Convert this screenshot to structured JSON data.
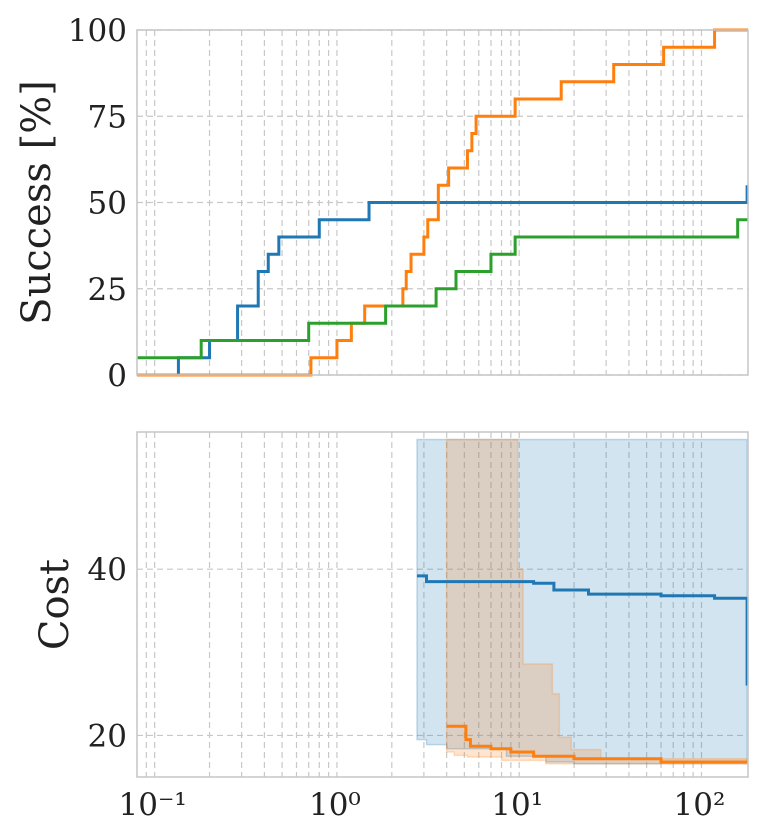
{
  "chart_data": [
    {
      "type": "line",
      "ylabel": "Success [%]",
      "xscale": "log",
      "xlim": [
        0.08,
        180
      ],
      "ylim": [
        0,
        100
      ],
      "yticks": [
        "0",
        "25",
        "50",
        "75",
        "100"
      ],
      "grid": true,
      "series": [
        {
          "color": "#1f77b4",
          "x": [
            0.08,
            0.135,
            0.135,
            0.2,
            0.2,
            0.285,
            0.285,
            0.37,
            0.37,
            0.42,
            0.42,
            0.48,
            0.48,
            0.8,
            0.8,
            1.5,
            1.5,
            2.75,
            2.75,
            178,
            178
          ],
          "y": [
            0,
            0,
            5,
            5,
            10,
            10,
            20,
            20,
            30,
            30,
            35,
            35,
            40,
            40,
            45,
            45,
            50,
            50,
            50,
            50,
            55
          ]
        },
        {
          "color": "#ff7f0e",
          "x": [
            0.08,
            0.72,
            0.72,
            1.0,
            1.0,
            1.2,
            1.2,
            1.42,
            1.42,
            2.3,
            2.3,
            2.4,
            2.4,
            2.55,
            2.55,
            3.0,
            3.0,
            3.15,
            3.15,
            3.6,
            3.6,
            4.1,
            4.1,
            5.2,
            5.2,
            5.5,
            5.5,
            5.8,
            5.8,
            9.5,
            9.5,
            17,
            17,
            33,
            33,
            62,
            62,
            118,
            118,
            130,
            130,
            180
          ],
          "y": [
            0,
            0,
            5,
            5,
            10,
            10,
            15,
            15,
            20,
            20,
            25,
            25,
            30,
            30,
            35,
            35,
            40,
            40,
            45,
            45,
            55,
            55,
            60,
            60,
            65,
            65,
            70,
            70,
            75,
            75,
            80,
            80,
            85,
            85,
            90,
            90,
            95,
            95,
            100,
            100,
            100,
            100
          ]
        },
        {
          "color": "#2ca02c",
          "x": [
            0.08,
            0.18,
            0.18,
            0.7,
            0.7,
            1.5,
            1.5,
            1.85,
            1.85,
            3.5,
            3.5,
            4.5,
            4.5,
            7.0,
            7.0,
            9.5,
            9.5,
            158,
            158,
            180
          ],
          "y": [
            5,
            5,
            10,
            10,
            15,
            15,
            15,
            15,
            20,
            20,
            25,
            25,
            30,
            30,
            35,
            35,
            40,
            40,
            45,
            45
          ]
        }
      ]
    },
    {
      "type": "area",
      "ylabel": "Cost",
      "xscale": "log",
      "xlim": [
        0.08,
        180
      ],
      "ylim": [
        15,
        56.5
      ],
      "yticks": [
        "20",
        "40"
      ],
      "xticks": [
        "10⁻¹",
        "10⁰",
        "10¹",
        "10²"
      ],
      "grid": true,
      "series": [
        {
          "color": "#1f77b4",
          "x": [
            2.75,
            3.1,
            3.1,
            12,
            12,
            15.5,
            15.5,
            24,
            24,
            60,
            60,
            118,
            118,
            178,
            178
          ],
          "y": [
            39.2,
            39.2,
            38.5,
            38.5,
            38.3,
            38.3,
            37.5,
            37.5,
            37.0,
            37.0,
            36.8,
            36.8,
            36.5,
            36.5,
            26.0
          ],
          "band_upper": [
            55.6,
            55.6
          ],
          "band_x": [
            2.75,
            178
          ],
          "band_lower": [
            19.5,
            19.5,
            18.9,
            18.9,
            18.4,
            18.4,
            17.5,
            17.5,
            16.8,
            16.8,
            16.6,
            16.6
          ],
          "band_lower_x": [
            2.75,
            3.1,
            3.1,
            4.0,
            4.0,
            8.5,
            8.5,
            14,
            14,
            20,
            20,
            178
          ]
        },
        {
          "color": "#ff7f0e",
          "x": [
            4.0,
            5.1,
            5.1,
            5.4,
            5.4,
            7.0,
            7.0,
            9.0,
            9.0,
            12,
            12,
            20,
            20,
            60,
            60,
            178
          ],
          "y": [
            21.1,
            21.1,
            19.5,
            19.5,
            18.7,
            18.7,
            18.4,
            18.4,
            18.0,
            18.0,
            17.5,
            17.5,
            17.2,
            17.2,
            16.8,
            16.8
          ],
          "band_upper_x": [
            4.0,
            9.8,
            9.8,
            10.5,
            10.5,
            15.2,
            15.2,
            16.6,
            16.6,
            19.3,
            19.3,
            28,
            28,
            178
          ],
          "band_upper": [
            55.6,
            55.6,
            40.0,
            40.0,
            28.6,
            28.6,
            25.0,
            25.0,
            19.8,
            19.8,
            18.3,
            18.3,
            17.2,
            17.2
          ],
          "band_lower_x": [
            4.0,
            4.4,
            4.4,
            5.2,
            5.2,
            8.0,
            8.0,
            14,
            14,
            178
          ],
          "band_lower": [
            18.0,
            18.0,
            17.6,
            17.6,
            17.4,
            17.4,
            17.0,
            17.0,
            16.6,
            16.6
          ]
        }
      ]
    }
  ]
}
